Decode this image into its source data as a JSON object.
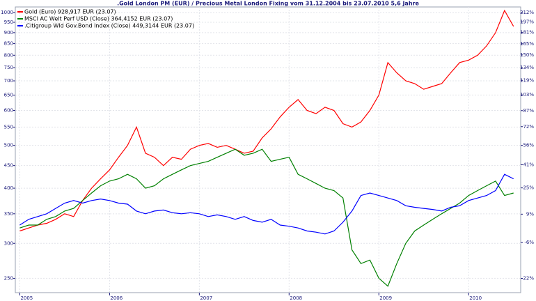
{
  "chart_data": {
    "type": "line",
    "title": ".Gold London PM (EUR) / Precious Metal London Fixing vom 31.12.2004 bis 23.07.2010 5,6 Jahre",
    "x": [
      2005.0,
      2005.1,
      2005.2,
      2005.3,
      2005.4,
      2005.5,
      2005.6,
      2005.7,
      2005.8,
      2005.9,
      2006.0,
      2006.1,
      2006.2,
      2006.3,
      2006.4,
      2006.5,
      2006.6,
      2006.7,
      2006.8,
      2006.9,
      2007.0,
      2007.1,
      2007.2,
      2007.3,
      2007.4,
      2007.5,
      2007.6,
      2007.7,
      2007.8,
      2007.9,
      2008.0,
      2008.1,
      2008.2,
      2008.3,
      2008.4,
      2008.5,
      2008.6,
      2008.7,
      2008.8,
      2008.9,
      2009.0,
      2009.1,
      2009.2,
      2009.3,
      2009.4,
      2009.5,
      2009.6,
      2009.7,
      2009.8,
      2009.9,
      2010.0,
      2010.1,
      2010.2,
      2010.3,
      2010.4,
      2010.5
    ],
    "series": [
      {
        "name": "Gold (Euro) 928,917 EUR (23.07)",
        "color": "#ff0000",
        "values": [
          320,
          325,
          330,
          333,
          340,
          350,
          345,
          375,
          400,
          420,
          440,
          470,
          500,
          550,
          480,
          470,
          450,
          470,
          465,
          490,
          500,
          505,
          495,
          500,
          490,
          480,
          485,
          520,
          545,
          580,
          610,
          635,
          600,
          590,
          610,
          600,
          560,
          550,
          565,
          600,
          650,
          770,
          730,
          700,
          690,
          670,
          680,
          690,
          730,
          770,
          780,
          800,
          840,
          900,
          1010,
          930
        ]
      },
      {
        "name": "MSCI AC Welt Perf USD (Close) 364,4152 EUR (23.07)",
        "color": "#008000",
        "values": [
          325,
          330,
          330,
          340,
          345,
          355,
          360,
          375,
          390,
          405,
          415,
          420,
          430,
          420,
          400,
          405,
          420,
          430,
          440,
          450,
          455,
          460,
          470,
          480,
          490,
          475,
          480,
          490,
          460,
          465,
          470,
          430,
          420,
          410,
          400,
          395,
          380,
          290,
          270,
          275,
          250,
          240,
          270,
          300,
          320,
          330,
          340,
          350,
          360,
          370,
          385,
          395,
          405,
          415,
          385,
          390
        ]
      },
      {
        "name": ".Citigroup Wld Gov.Bond Index (Close) 449,3144 EUR (23.07)",
        "color": "#0000ff",
        "values": [
          330,
          340,
          345,
          350,
          360,
          370,
          375,
          370,
          375,
          378,
          375,
          370,
          368,
          355,
          350,
          355,
          357,
          352,
          350,
          352,
          350,
          345,
          348,
          345,
          340,
          345,
          338,
          335,
          340,
          330,
          328,
          325,
          320,
          318,
          315,
          320,
          335,
          355,
          385,
          390,
          385,
          380,
          375,
          365,
          362,
          360,
          358,
          355,
          362,
          365,
          375,
          380,
          385,
          395,
          430,
          420
        ]
      }
    ],
    "xlim": [
      2004.95,
      2010.58
    ],
    "xticks": [
      2005,
      2006,
      2007,
      2008,
      2009,
      2010
    ],
    "ylim": [
      232,
      1029
    ],
    "yscale": "log",
    "yticks": [
      1000,
      950,
      900,
      850,
      800,
      750,
      700,
      650,
      600,
      550,
      500,
      450,
      400,
      350,
      300,
      250
    ],
    "y2lim": [
      -27.6,
      221
    ],
    "y2scale": "log",
    "y2ticks": [
      {
        "value": 212,
        "label": "212%"
      },
      {
        "value": 197,
        "label": "197%"
      },
      {
        "value": 181,
        "label": "181%"
      },
      {
        "value": 165,
        "label": "165%"
      },
      {
        "value": 150,
        "label": "150%"
      },
      {
        "value": 134,
        "label": "134%"
      },
      {
        "value": 119,
        "label": "119%"
      },
      {
        "value": 103,
        "label": "103%"
      },
      {
        "value": 87,
        "label": "87%"
      },
      {
        "value": 72,
        "label": "72%"
      },
      {
        "value": 56,
        "label": "56%"
      },
      {
        "value": 41,
        "label": "41%"
      },
      {
        "value": 25,
        "label": "25%"
      },
      {
        "value": 9,
        "label": "9%"
      },
      {
        "value": -6,
        "label": "-6%"
      },
      {
        "value": -22,
        "label": "-22%"
      }
    ],
    "grid": true
  }
}
